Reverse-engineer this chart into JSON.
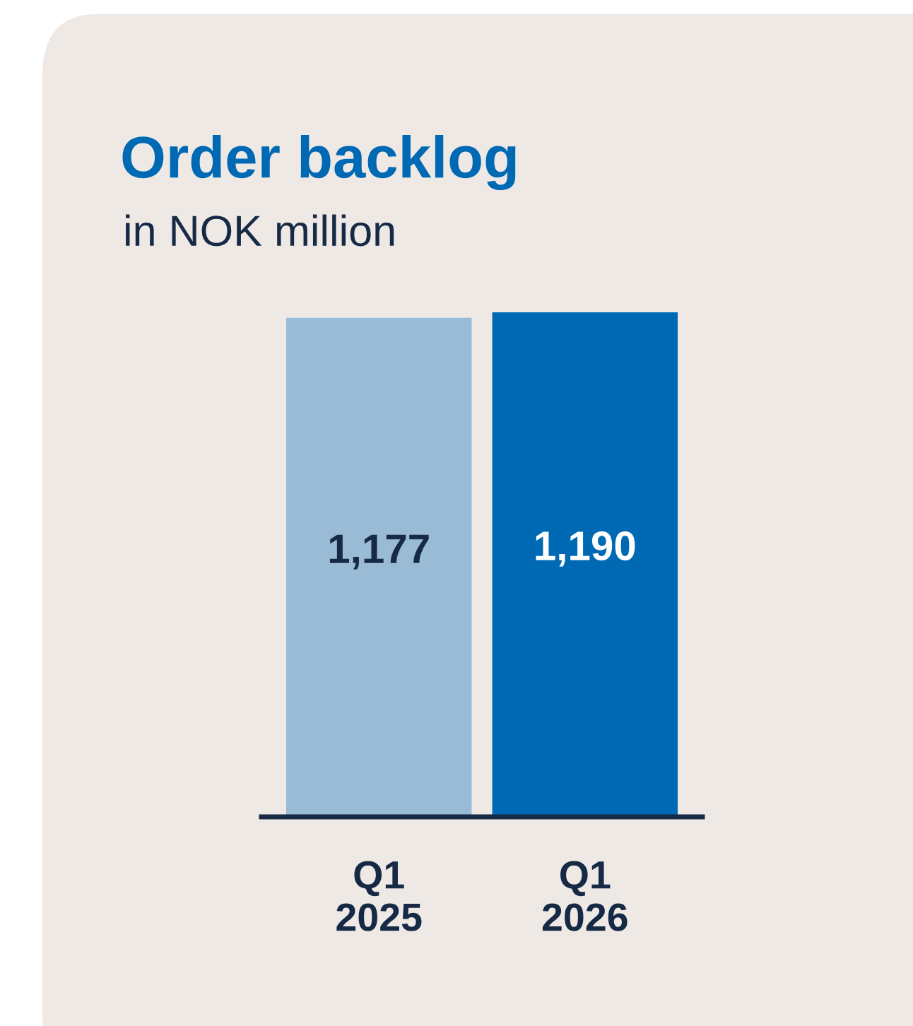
{
  "chart_data": {
    "type": "bar",
    "title": "Order backlog",
    "subtitle": "in NOK million",
    "categories": [
      "Q1\n2025",
      "Q1\n2026"
    ],
    "values": [
      1177,
      1190
    ],
    "colors": [
      "#99bbd6",
      "#0069b4"
    ],
    "value_labels": [
      "1,177",
      "1,190"
    ],
    "grid": false,
    "legend": false
  }
}
